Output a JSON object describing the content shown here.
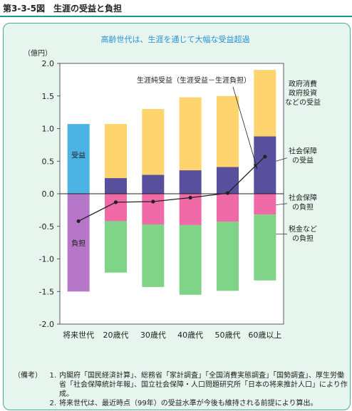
{
  "figure_title": "第3-3-5図　生涯の受益と負担",
  "chart_data": {
    "type": "bar",
    "title": "高齢世代は、生涯を通じて大幅な受益超過",
    "ylabel": "（億円）",
    "xlabel": "",
    "ylim": [
      -2.0,
      2.0
    ],
    "yticks": [
      2.0,
      1.5,
      1.0,
      0.5,
      0.0,
      -0.5,
      -1.0,
      -1.5,
      -2.0
    ],
    "ytick_labels": [
      "2.0",
      "1.5",
      "1.0",
      "0.5",
      "0.0",
      "-0.5",
      "-1.0",
      "-1.5",
      "-2.0"
    ],
    "categories": [
      "将来世代",
      "20歳代",
      "30歳代",
      "40歳代",
      "50歳代",
      "60歳以上"
    ],
    "future_generation": {
      "benefit": 1.07,
      "burden": -1.5,
      "benefit_label": "受益",
      "burden_label": "負担"
    },
    "series": [
      {
        "name": "政府消費政府投資などの受益",
        "values": [
          null,
          0.83,
          1.01,
          1.12,
          1.09,
          1.02
        ]
      },
      {
        "name": "社会保障の受益",
        "values": [
          null,
          0.24,
          0.29,
          0.36,
          0.41,
          0.88
        ]
      },
      {
        "name": "社会保障の負担",
        "values": [
          null,
          -0.42,
          -0.47,
          -0.48,
          -0.43,
          -0.32
        ]
      },
      {
        "name": "税金などの負担",
        "values": [
          null,
          -0.79,
          -0.96,
          -1.07,
          -1.06,
          -1.01
        ]
      }
    ],
    "net_line": {
      "name": "生涯純受益（生涯受益－生涯負担）",
      "values": [
        -0.42,
        -0.13,
        -0.12,
        -0.06,
        0.01,
        0.57
      ]
    },
    "annotations": {
      "net_label": "生涯純受益（生涯受益－生涯負担）",
      "right_labels": [
        {
          "lines": [
            "政府消費",
            "政府投資",
            "などの受益"
          ]
        },
        {
          "lines": [
            "社会保障",
            "の受益"
          ]
        },
        {
          "lines": [
            "社会保障",
            "の負担"
          ]
        },
        {
          "lines": [
            "税金など",
            "の負担"
          ]
        }
      ]
    },
    "colors": {
      "gov": "#fdd46e",
      "ss_benefit": "#58509c",
      "ss_burden": "#ef6aa6",
      "tax": "#7fd488",
      "future_benefit": "#4bb4e5",
      "future_burden": "#b777c8",
      "title": "#2a8fd0"
    }
  },
  "notes": {
    "key": "（備考）",
    "items": [
      {
        "num": "1.",
        "text": "内閣府「国民経済計算」、総務省「家計調査」「全国消費実態調査」「国勢調査」、厚生労働省「社会保障統計年報」、国立社会保障・人口問題研究所「日本の将来推計人口」により作成。"
      },
      {
        "num": "2.",
        "text": "将来世代は、最近時点（99年）の受益水準が今後も維持される前提により算出。"
      }
    ]
  }
}
